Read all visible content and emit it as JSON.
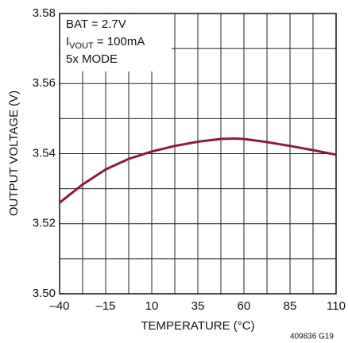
{
  "chart_data": {
    "type": "line",
    "x_label": "TEMPERATURE (°C)",
    "y_label": "OUTPUT VOLTAGE (V)",
    "annotations": [
      {
        "text": "BAT = 2.7V"
      },
      {
        "text": "I",
        "sub": "VOUT",
        "after": " = 100mA"
      },
      {
        "text": "5x MODE"
      }
    ],
    "footnote": "409836 G19",
    "x": [
      -40,
      -27.5,
      -15,
      -2.5,
      10,
      22.5,
      35,
      47.5,
      55,
      60,
      72.5,
      85,
      97.5,
      110
    ],
    "series": [
      {
        "color": "#8b1a3a",
        "values": [
          3.526,
          3.5312,
          3.5355,
          3.5385,
          3.5406,
          3.5422,
          3.5434,
          3.5442,
          3.5443,
          3.5442,
          3.5433,
          3.5422,
          3.541,
          3.5397
        ]
      }
    ],
    "xlim": [
      -40,
      110
    ],
    "ylim": [
      3.5,
      3.58
    ],
    "xticks": [
      {
        "value": -40,
        "label": "–40"
      },
      {
        "value": -15,
        "label": "–15"
      },
      10,
      35,
      60,
      85,
      110
    ],
    "yticks": [
      {
        "value": 3.5,
        "label": "3.50"
      },
      3.52,
      3.54,
      3.56,
      3.58
    ],
    "minor_xticks": [
      -27.5,
      -2.5,
      22.5,
      47.5,
      72.5,
      97.5
    ],
    "minor_yticks": [
      3.51,
      3.53,
      3.55,
      3.57
    ],
    "grid": true
  }
}
